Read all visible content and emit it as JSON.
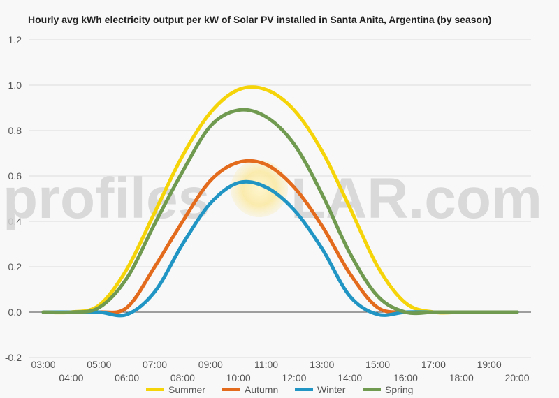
{
  "chart_data": {
    "type": "line",
    "title": "Hourly avg kWh electricity output per kW of Solar PV installed in Santa Anita, Argentina (by season)",
    "xlabel": "",
    "ylabel": "",
    "ylim": [
      -0.2,
      1.2
    ],
    "yticks": [
      "-0.2",
      "0.0",
      "0.2",
      "0.4",
      "0.6",
      "0.8",
      "1.0",
      "1.2"
    ],
    "x": [
      "03:00",
      "04:00",
      "05:00",
      "06:00",
      "07:00",
      "08:00",
      "09:00",
      "10:00",
      "11:00",
      "12:00",
      "13:00",
      "14:00",
      "15:00",
      "16:00",
      "17:00",
      "18:00",
      "19:00",
      "20:00"
    ],
    "grid": true,
    "legend": "bottom",
    "series": [
      {
        "name": "Summer",
        "color": "#f5d40a",
        "values": [
          0.0,
          0.0,
          0.03,
          0.19,
          0.44,
          0.69,
          0.88,
          0.98,
          0.98,
          0.89,
          0.71,
          0.46,
          0.2,
          0.04,
          0.0,
          0.0,
          0.0,
          0.0
        ]
      },
      {
        "name": "Autumn",
        "color": "#e36b1e",
        "values": [
          0.0,
          0.0,
          0.0,
          0.02,
          0.2,
          0.4,
          0.58,
          0.66,
          0.65,
          0.55,
          0.38,
          0.17,
          0.02,
          0.0,
          0.0,
          0.0,
          0.0,
          0.0
        ]
      },
      {
        "name": "Winter",
        "color": "#2196c4",
        "values": [
          0.0,
          0.0,
          0.0,
          -0.01,
          0.09,
          0.3,
          0.48,
          0.57,
          0.55,
          0.45,
          0.28,
          0.07,
          -0.01,
          0.0,
          0.0,
          0.0,
          0.0,
          0.0
        ]
      },
      {
        "name": "Spring",
        "color": "#6f9a50",
        "values": [
          0.0,
          0.0,
          0.02,
          0.15,
          0.39,
          0.62,
          0.82,
          0.89,
          0.86,
          0.74,
          0.52,
          0.26,
          0.07,
          0.0,
          0.0,
          0.0,
          0.0,
          0.0
        ]
      }
    ]
  },
  "watermark": {
    "text_left": "profiles",
    "text_right": "LAR.com"
  }
}
